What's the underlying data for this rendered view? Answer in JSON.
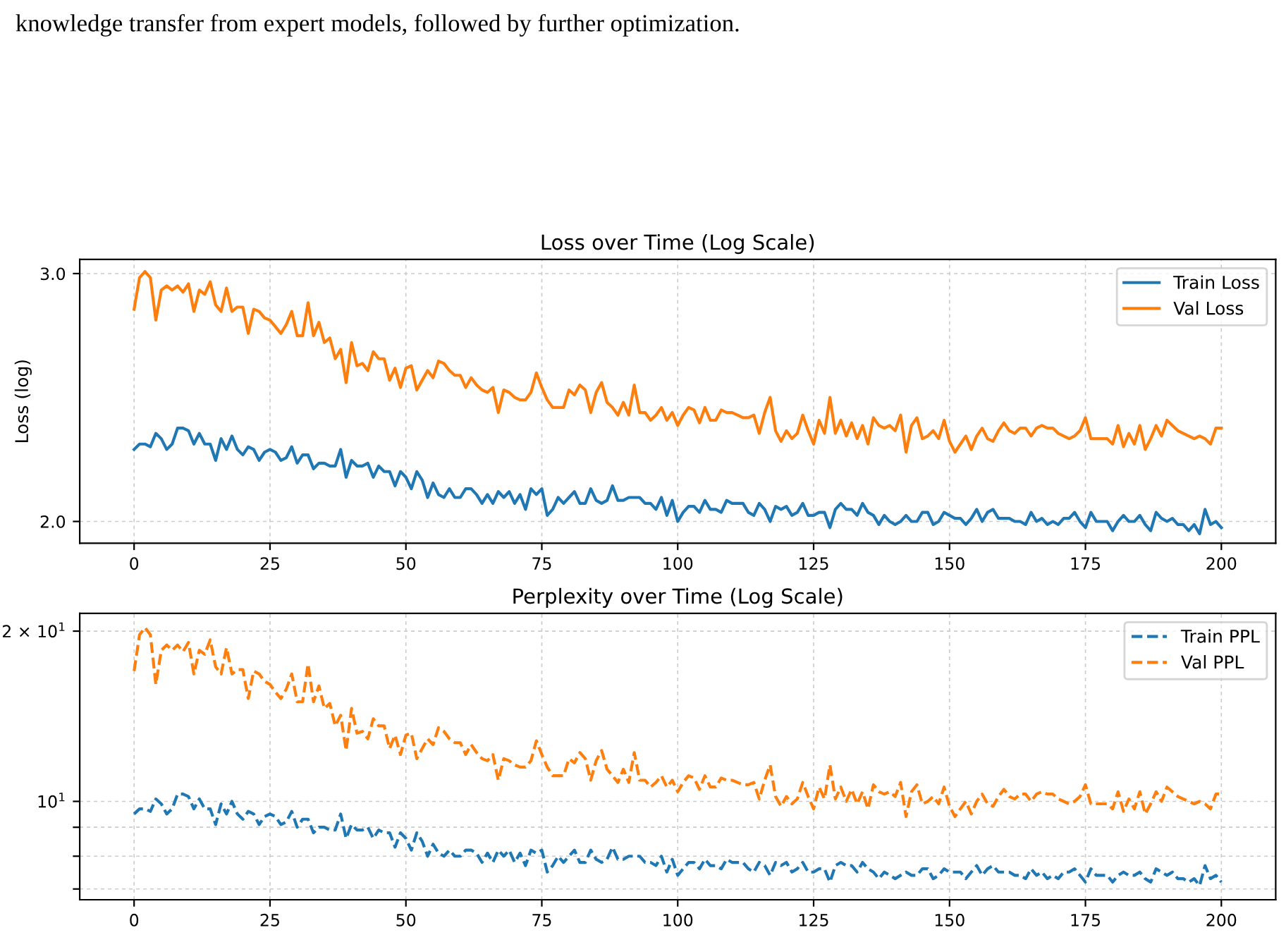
{
  "chart_data": [
    {
      "type": "line",
      "title": "Loss over Time (Log Scale)",
      "ylabel": "Loss (log)",
      "log": "y",
      "grid": true,
      "legend": "top right",
      "line_style": "solid",
      "marker": "none",
      "annotations": [
        "knowledge transfer from expert models, followed by further optimization."
      ],
      "xlim": [
        -10,
        210
      ],
      "xticks": [
        0,
        25,
        50,
        75,
        100,
        125,
        150,
        175,
        200
      ],
      "ylim": [
        1.93,
        3.07
      ],
      "yticks": [
        {
          "value": 2,
          "label": "2.0"
        },
        {
          "value": 3,
          "label": "3.0"
        }
      ],
      "x": [
        0,
        1,
        2,
        3,
        4,
        5,
        6,
        7,
        8,
        9,
        10,
        11,
        12,
        13,
        14,
        15,
        16,
        17,
        18,
        19,
        20,
        21,
        22,
        23,
        24,
        25,
        26,
        27,
        28,
        29,
        30,
        31,
        32,
        33,
        34,
        35,
        36,
        37,
        38,
        39,
        40,
        41,
        42,
        43,
        44,
        45,
        46,
        47,
        48,
        49,
        50,
        51,
        52,
        53,
        54,
        55,
        56,
        57,
        58,
        59,
        60,
        61,
        62,
        63,
        64,
        65,
        66,
        67,
        68,
        69,
        70,
        71,
        72,
        73,
        74,
        75,
        76,
        77,
        78,
        79,
        80,
        81,
        82,
        83,
        84,
        85,
        86,
        87,
        88,
        89,
        90,
        91,
        92,
        93,
        94,
        95,
        96,
        97,
        98,
        99,
        100,
        101,
        102,
        103,
        104,
        105,
        106,
        107,
        108,
        109,
        110,
        111,
        112,
        113,
        114,
        115,
        116,
        117,
        118,
        119,
        120,
        121,
        122,
        123,
        124,
        125,
        126,
        127,
        128,
        129,
        130,
        131,
        132,
        133,
        134,
        135,
        136,
        137,
        138,
        139,
        140,
        141,
        142,
        143,
        144,
        145,
        146,
        147,
        148,
        149,
        150,
        151,
        152,
        153,
        154,
        155,
        156,
        157,
        158,
        159,
        160,
        161,
        162,
        163,
        164,
        165,
        166,
        167,
        168,
        169,
        170,
        171,
        172,
        173,
        174,
        175,
        176,
        177,
        178,
        179,
        180,
        181,
        182,
        183,
        184,
        185,
        186,
        187,
        188,
        189,
        190,
        191,
        192,
        193,
        194,
        195,
        196,
        197,
        198,
        199,
        200
      ],
      "series": [
        {
          "name": "Train Loss",
          "color": "#1f77b4",
          "values": [
            2.25,
            2.27,
            2.27,
            2.26,
            2.31,
            2.29,
            2.25,
            2.27,
            2.33,
            2.33,
            2.32,
            2.27,
            2.31,
            2.27,
            2.27,
            2.21,
            2.29,
            2.25,
            2.3,
            2.25,
            2.23,
            2.26,
            2.25,
            2.21,
            2.24,
            2.25,
            2.24,
            2.21,
            2.22,
            2.26,
            2.2,
            2.23,
            2.23,
            2.18,
            2.2,
            2.2,
            2.19,
            2.19,
            2.25,
            2.15,
            2.21,
            2.19,
            2.19,
            2.2,
            2.15,
            2.19,
            2.17,
            2.17,
            2.12,
            2.17,
            2.15,
            2.11,
            2.17,
            2.14,
            2.08,
            2.13,
            2.09,
            2.08,
            2.11,
            2.08,
            2.08,
            2.11,
            2.11,
            2.09,
            2.06,
            2.09,
            2.06,
            2.1,
            2.08,
            2.1,
            2.06,
            2.09,
            2.04,
            2.11,
            2.09,
            2.11,
            2.02,
            2.04,
            2.08,
            2.06,
            2.08,
            2.1,
            2.06,
            2.06,
            2.11,
            2.07,
            2.06,
            2.07,
            2.12,
            2.07,
            2.07,
            2.08,
            2.08,
            2.08,
            2.06,
            2.06,
            2.04,
            2.08,
            2.02,
            2.07,
            2.0,
            2.03,
            2.05,
            2.05,
            2.03,
            2.07,
            2.04,
            2.04,
            2.03,
            2.07,
            2.06,
            2.06,
            2.06,
            2.03,
            2.02,
            2.06,
            2.04,
            2.0,
            2.05,
            2.04,
            2.05,
            2.02,
            2.03,
            2.06,
            2.02,
            2.02,
            2.03,
            2.03,
            1.98,
            2.04,
            2.06,
            2.04,
            2.04,
            2.02,
            2.06,
            2.03,
            2.02,
            1.99,
            2.02,
            2.0,
            1.99,
            2.0,
            2.02,
            2.0,
            2.0,
            2.03,
            2.03,
            1.99,
            2.0,
            2.03,
            2.02,
            2.01,
            2.01,
            1.99,
            2.01,
            2.04,
            2.0,
            2.03,
            2.04,
            2.01,
            2.01,
            2.01,
            2.0,
            2.0,
            1.99,
            2.03,
            2.0,
            2.01,
            1.99,
            2.0,
            1.99,
            2.01,
            2.01,
            2.03,
            2.0,
            1.98,
            2.03,
            2.0,
            2.0,
            2.0,
            1.97,
            2.0,
            2.02,
            2.0,
            2.0,
            2.02,
            1.99,
            1.97,
            2.03,
            2.01,
            2.0,
            2.01,
            1.99,
            1.99,
            1.97,
            1.99,
            1.96,
            2.04,
            1.99,
            2.0,
            1.98
          ]
        },
        {
          "name": "Val Loss",
          "color": "#ff7f0e",
          "values": [
            2.83,
            2.98,
            3.01,
            2.98,
            2.78,
            2.92,
            2.94,
            2.92,
            2.94,
            2.91,
            2.95,
            2.82,
            2.92,
            2.9,
            2.96,
            2.85,
            2.82,
            2.93,
            2.82,
            2.84,
            2.84,
            2.72,
            2.83,
            2.82,
            2.79,
            2.78,
            2.75,
            2.72,
            2.76,
            2.82,
            2.71,
            2.71,
            2.86,
            2.71,
            2.77,
            2.68,
            2.7,
            2.61,
            2.65,
            2.51,
            2.68,
            2.58,
            2.59,
            2.56,
            2.64,
            2.61,
            2.61,
            2.52,
            2.57,
            2.49,
            2.57,
            2.58,
            2.48,
            2.52,
            2.56,
            2.53,
            2.6,
            2.59,
            2.56,
            2.54,
            2.54,
            2.49,
            2.53,
            2.5,
            2.48,
            2.47,
            2.49,
            2.39,
            2.48,
            2.47,
            2.45,
            2.44,
            2.44,
            2.47,
            2.55,
            2.49,
            2.44,
            2.41,
            2.41,
            2.41,
            2.48,
            2.46,
            2.5,
            2.48,
            2.39,
            2.47,
            2.51,
            2.43,
            2.41,
            2.38,
            2.43,
            2.38,
            2.5,
            2.39,
            2.39,
            2.36,
            2.38,
            2.41,
            2.36,
            2.39,
            2.34,
            2.38,
            2.41,
            2.4,
            2.35,
            2.41,
            2.36,
            2.36,
            2.4,
            2.39,
            2.39,
            2.38,
            2.37,
            2.37,
            2.38,
            2.31,
            2.39,
            2.45,
            2.32,
            2.28,
            2.32,
            2.29,
            2.31,
            2.38,
            2.32,
            2.27,
            2.36,
            2.31,
            2.45,
            2.31,
            2.36,
            2.3,
            2.35,
            2.29,
            2.34,
            2.27,
            2.37,
            2.34,
            2.33,
            2.34,
            2.32,
            2.38,
            2.24,
            2.34,
            2.37,
            2.29,
            2.3,
            2.32,
            2.29,
            2.36,
            2.28,
            2.24,
            2.27,
            2.3,
            2.25,
            2.3,
            2.33,
            2.29,
            2.28,
            2.32,
            2.35,
            2.32,
            2.31,
            2.33,
            2.33,
            2.3,
            2.33,
            2.34,
            2.33,
            2.33,
            2.31,
            2.3,
            2.29,
            2.3,
            2.32,
            2.37,
            2.29,
            2.29,
            2.29,
            2.29,
            2.27,
            2.34,
            2.26,
            2.31,
            2.27,
            2.34,
            2.25,
            2.29,
            2.34,
            2.3,
            2.36,
            2.34,
            2.32,
            2.31,
            2.3,
            2.29,
            2.3,
            2.29,
            2.27,
            2.33,
            2.33
          ]
        }
      ]
    },
    {
      "type": "line",
      "title": "Perplexity over Time (Log Scale)",
      "log": "y",
      "grid": true,
      "legend": "top right",
      "line_style": "dashed",
      "marker": "none",
      "xlim": [
        -10,
        210
      ],
      "xticks": [
        0,
        25,
        50,
        75,
        100,
        125,
        150,
        175,
        200
      ],
      "ylim": [
        6.7,
        21.5
      ],
      "yticks": [
        {
          "value": 7,
          "label": null
        },
        {
          "value": 8,
          "label": null
        },
        {
          "value": 9,
          "label": null
        },
        {
          "value": 10,
          "label": "10$^{1}$"
        },
        {
          "value": 20,
          "label": "2 × 10$^{1}$"
        }
      ],
      "x": [
        0,
        1,
        2,
        3,
        4,
        5,
        6,
        7,
        8,
        9,
        10,
        11,
        12,
        13,
        14,
        15,
        16,
        17,
        18,
        19,
        20,
        21,
        22,
        23,
        24,
        25,
        26,
        27,
        28,
        29,
        30,
        31,
        32,
        33,
        34,
        35,
        36,
        37,
        38,
        39,
        40,
        41,
        42,
        43,
        44,
        45,
        46,
        47,
        48,
        49,
        50,
        51,
        52,
        53,
        54,
        55,
        56,
        57,
        58,
        59,
        60,
        61,
        62,
        63,
        64,
        65,
        66,
        67,
        68,
        69,
        70,
        71,
        72,
        73,
        74,
        75,
        76,
        77,
        78,
        79,
        80,
        81,
        82,
        83,
        84,
        85,
        86,
        87,
        88,
        89,
        90,
        91,
        92,
        93,
        94,
        95,
        96,
        97,
        98,
        99,
        100,
        101,
        102,
        103,
        104,
        105,
        106,
        107,
        108,
        109,
        110,
        111,
        112,
        113,
        114,
        115,
        116,
        117,
        118,
        119,
        120,
        121,
        122,
        123,
        124,
        125,
        126,
        127,
        128,
        129,
        130,
        131,
        132,
        133,
        134,
        135,
        136,
        137,
        138,
        139,
        140,
        141,
        142,
        143,
        144,
        145,
        146,
        147,
        148,
        149,
        150,
        151,
        152,
        153,
        154,
        155,
        156,
        157,
        158,
        159,
        160,
        161,
        162,
        163,
        164,
        165,
        166,
        167,
        168,
        169,
        170,
        171,
        172,
        173,
        174,
        175,
        176,
        177,
        178,
        179,
        180,
        181,
        182,
        183,
        184,
        185,
        186,
        187,
        188,
        189,
        190,
        191,
        192,
        193,
        194,
        195,
        196,
        197,
        198,
        199,
        200
      ],
      "series": [
        {
          "name": "Train PPL",
          "color": "#1f77b4",
          "values": [
            9.5,
            9.7,
            9.7,
            9.6,
            10.1,
            9.9,
            9.5,
            9.7,
            10.3,
            10.3,
            10.2,
            9.7,
            10.1,
            9.7,
            9.7,
            9.1,
            9.9,
            9.5,
            10.0,
            9.5,
            9.3,
            9.6,
            9.5,
            9.1,
            9.4,
            9.5,
            9.4,
            9.1,
            9.2,
            9.6,
            9.0,
            9.3,
            9.3,
            8.8,
            9.0,
            9.0,
            8.9,
            8.9,
            9.5,
            8.6,
            9.1,
            8.9,
            8.9,
            9.0,
            8.6,
            8.9,
            8.8,
            8.8,
            8.3,
            8.8,
            8.6,
            8.2,
            8.8,
            8.5,
            8.0,
            8.4,
            8.1,
            8.0,
            8.2,
            8.0,
            8.0,
            8.2,
            8.2,
            8.1,
            7.8,
            8.1,
            7.8,
            8.2,
            8.0,
            8.2,
            7.8,
            8.1,
            7.7,
            8.2,
            8.1,
            8.2,
            7.5,
            7.7,
            8.0,
            7.8,
            8.0,
            8.2,
            7.8,
            7.8,
            8.2,
            7.9,
            7.8,
            7.9,
            8.3,
            7.9,
            7.9,
            8.0,
            8.0,
            8.0,
            7.8,
            7.8,
            7.7,
            8.0,
            7.5,
            7.9,
            7.4,
            7.6,
            7.8,
            7.8,
            7.6,
            7.9,
            7.7,
            7.7,
            7.6,
            7.9,
            7.8,
            7.8,
            7.8,
            7.6,
            7.5,
            7.8,
            7.7,
            7.4,
            7.8,
            7.7,
            7.8,
            7.5,
            7.6,
            7.8,
            7.5,
            7.5,
            7.6,
            7.6,
            7.2,
            7.7,
            7.8,
            7.7,
            7.7,
            7.5,
            7.8,
            7.6,
            7.5,
            7.3,
            7.5,
            7.4,
            7.3,
            7.4,
            7.5,
            7.4,
            7.4,
            7.6,
            7.6,
            7.3,
            7.4,
            7.6,
            7.5,
            7.5,
            7.5,
            7.3,
            7.5,
            7.7,
            7.4,
            7.6,
            7.7,
            7.5,
            7.5,
            7.5,
            7.4,
            7.4,
            7.3,
            7.6,
            7.4,
            7.5,
            7.3,
            7.4,
            7.3,
            7.5,
            7.5,
            7.6,
            7.4,
            7.2,
            7.6,
            7.4,
            7.4,
            7.4,
            7.2,
            7.4,
            7.5,
            7.4,
            7.4,
            7.5,
            7.3,
            7.2,
            7.6,
            7.5,
            7.4,
            7.5,
            7.3,
            7.3,
            7.2,
            7.3,
            7.1,
            7.7,
            7.3,
            7.4,
            7.2
          ]
        },
        {
          "name": "Val PPL",
          "color": "#ff7f0e",
          "values": [
            17.0,
            19.7,
            20.3,
            19.7,
            16.1,
            18.5,
            18.9,
            18.5,
            18.9,
            18.4,
            19.1,
            16.8,
            18.5,
            18.2,
            19.3,
            17.3,
            16.8,
            18.7,
            16.8,
            17.1,
            17.1,
            15.2,
            17.0,
            16.8,
            16.3,
            16.1,
            15.6,
            15.2,
            15.8,
            16.8,
            15.0,
            15.0,
            17.5,
            15.0,
            16.0,
            14.6,
            14.9,
            13.6,
            14.2,
            12.3,
            14.6,
            13.2,
            13.3,
            12.9,
            14.0,
            13.6,
            13.6,
            12.4,
            13.1,
            12.1,
            13.1,
            13.2,
            11.9,
            12.4,
            12.9,
            12.6,
            13.5,
            13.3,
            12.9,
            12.7,
            12.7,
            12.1,
            12.6,
            12.2,
            11.9,
            11.8,
            12.1,
            10.9,
            11.9,
            11.8,
            11.6,
            11.5,
            11.5,
            11.8,
            12.8,
            12.1,
            11.5,
            11.1,
            11.1,
            11.1,
            11.9,
            11.7,
            12.2,
            11.9,
            10.9,
            11.8,
            12.3,
            11.4,
            11.1,
            10.8,
            11.4,
            10.8,
            12.2,
            10.9,
            10.9,
            10.6,
            10.8,
            11.1,
            10.6,
            10.9,
            10.4,
            10.8,
            11.1,
            11.0,
            10.5,
            11.1,
            10.6,
            10.6,
            11.0,
            10.9,
            10.9,
            10.8,
            10.7,
            10.7,
            10.8,
            10.1,
            10.9,
            11.6,
            10.2,
            9.8,
            10.2,
            9.9,
            10.1,
            10.8,
            10.2,
            9.7,
            10.6,
            10.1,
            11.6,
            10.1,
            10.6,
            10.0,
            10.5,
            9.9,
            10.4,
            9.7,
            10.7,
            10.4,
            10.3,
            10.4,
            10.2,
            10.8,
            9.4,
            10.4,
            10.7,
            9.9,
            10.0,
            10.2,
            9.9,
            10.6,
            9.8,
            9.4,
            9.7,
            10.0,
            9.5,
            10.0,
            10.3,
            9.9,
            9.8,
            10.2,
            10.5,
            10.2,
            10.1,
            10.3,
            10.3,
            10.0,
            10.3,
            10.4,
            10.3,
            10.3,
            10.1,
            10.0,
            9.9,
            10.0,
            10.2,
            10.7,
            9.9,
            9.9,
            9.9,
            9.9,
            9.7,
            10.4,
            9.6,
            10.1,
            9.7,
            10.4,
            9.5,
            9.9,
            10.4,
            10.0,
            10.6,
            10.4,
            10.2,
            10.1,
            10.0,
            9.9,
            10.0,
            9.9,
            9.7,
            10.3,
            10.3
          ]
        }
      ]
    }
  ]
}
